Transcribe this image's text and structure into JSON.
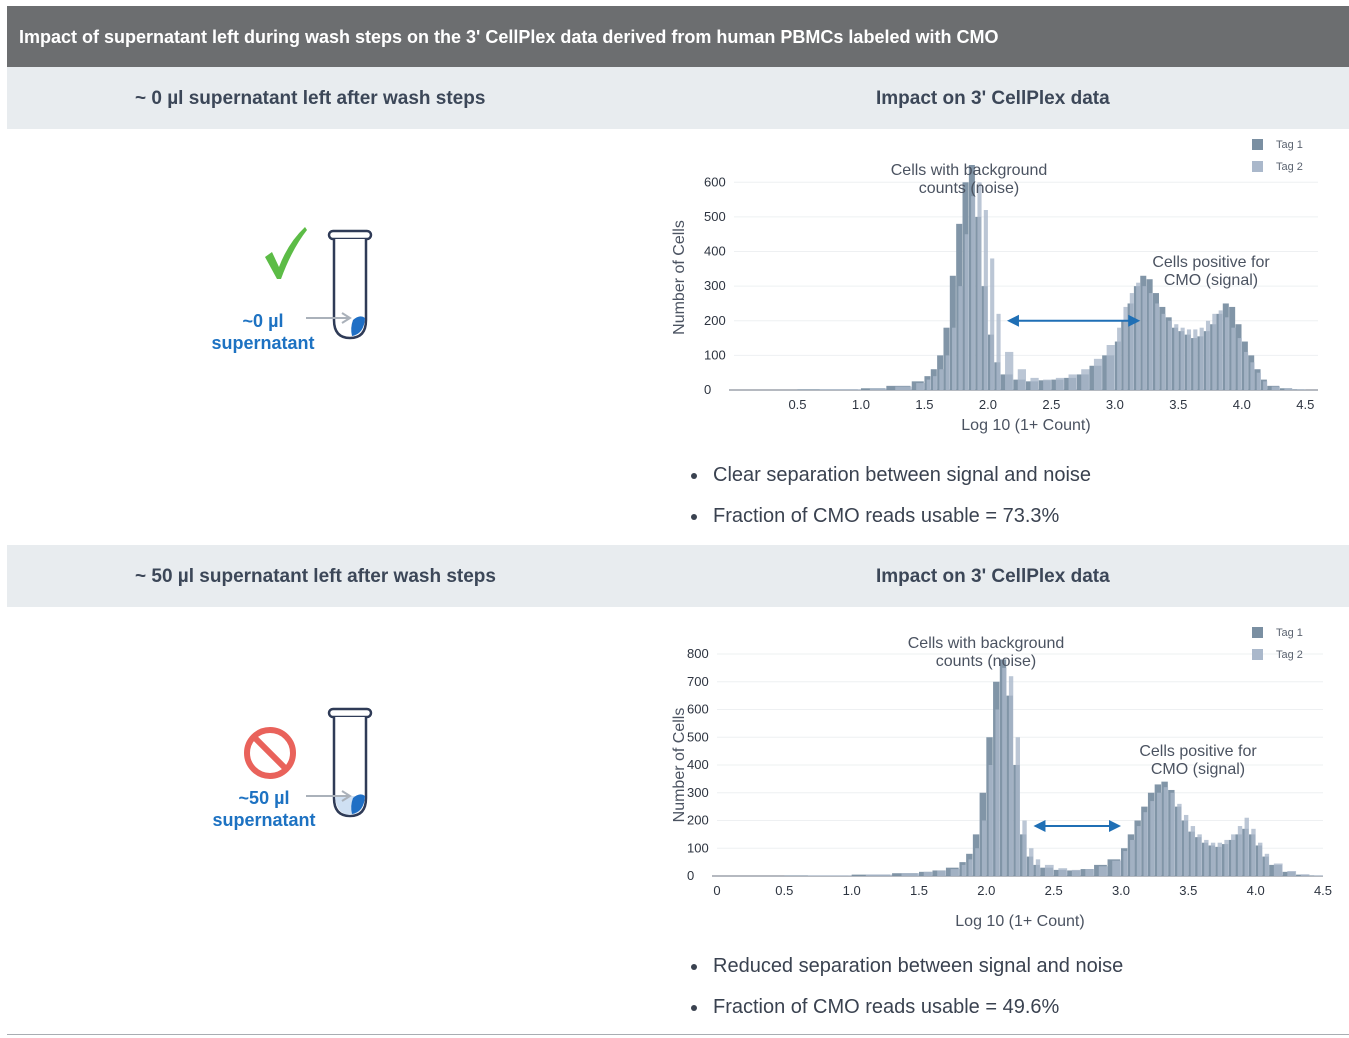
{
  "title": "Impact of supernatant left during wash steps on the 3' CellPlex data derived from human PBMCs labeled with CMO",
  "colors": {
    "tag1": "#7a8fa2",
    "tag2": "#aab8cb",
    "arrow": "#1f6fb5",
    "check": "#5cbc46",
    "prohibit": "#e9625b",
    "label": "#1d72c2"
  },
  "sections": [
    {
      "left_header": "~ 0 µl supernatant left after wash steps",
      "right_header": "Impact on 3' CellPlex data",
      "status_icon": "checkmark-icon",
      "tube_icon": "tube-icon",
      "label_line1": "~0 µl",
      "label_line2": "supernatant",
      "bullets": [
        "Clear separation between signal and noise",
        "Fraction of CMO reads usable = 73.3%"
      ]
    },
    {
      "left_header": "~ 50 µl supernatant left after wash steps",
      "right_header": "Impact on 3' CellPlex data",
      "status_icon": "prohibited-icon",
      "tube_icon": "tube-icon",
      "label_line1": "~50 µl",
      "label_line2": "supernatant",
      "bullets": [
        "Reduced separation between signal and noise",
        "Fraction of CMO reads usable = 49.6%"
      ]
    }
  ],
  "chart_data": [
    {
      "type": "histogram",
      "xlabel": "Log 10 (1+ Count)",
      "ylabel": "Number of Cells",
      "xlim": [
        0,
        4.6
      ],
      "ylim": [
        0,
        650
      ],
      "xticks": [
        "0.5",
        "1.0",
        "1.5",
        "2.0",
        "2.5",
        "3.0",
        "3.5",
        "4.0",
        "4.5"
      ],
      "yticks": [
        "0",
        "100",
        "200",
        "300",
        "400",
        "500",
        "600"
      ],
      "grid": true,
      "legend": "top-right",
      "legend_labels": [
        "Tag 1",
        "Tag 2"
      ],
      "annotations": {
        "noise": [
          "Cells with background",
          "counts (noise)"
        ],
        "signal": [
          "Cells positive for",
          "CMO (signal)"
        ]
      },
      "arrow_x": [
        2.15,
        3.2
      ],
      "arrow_y": 200,
      "series": [
        {
          "name": "Tag 1",
          "x": [
            0.0,
            0.5,
            1.0,
            1.2,
            1.4,
            1.5,
            1.55,
            1.6,
            1.65,
            1.7,
            1.75,
            1.8,
            1.85,
            1.9,
            1.95,
            2.0,
            2.05,
            2.1,
            2.2,
            2.3,
            2.4,
            2.5,
            2.6,
            2.7,
            2.8,
            2.9,
            3.0,
            3.05,
            3.1,
            3.15,
            3.2,
            3.25,
            3.3,
            3.35,
            3.4,
            3.45,
            3.5,
            3.55,
            3.6,
            3.65,
            3.7,
            3.75,
            3.8,
            3.85,
            3.9,
            3.95,
            4.0,
            4.05,
            4.1,
            4.15,
            4.2,
            4.3,
            4.4,
            4.5
          ],
          "y": [
            0,
            2,
            5,
            12,
            25,
            40,
            60,
            100,
            180,
            330,
            480,
            600,
            650,
            500,
            300,
            160,
            80,
            45,
            30,
            25,
            28,
            30,
            35,
            45,
            70,
            100,
            140,
            200,
            250,
            300,
            330,
            320,
            280,
            240,
            210,
            180,
            170,
            160,
            150,
            155,
            170,
            190,
            220,
            250,
            240,
            190,
            140,
            100,
            60,
            30,
            12,
            5,
            2,
            0
          ]
        },
        {
          "name": "Tag 2",
          "x": [
            0.0,
            0.5,
            1.0,
            1.2,
            1.4,
            1.5,
            1.55,
            1.6,
            1.65,
            1.7,
            1.75,
            1.8,
            1.85,
            1.9,
            1.95,
            2.0,
            2.05,
            2.1,
            2.2,
            2.3,
            2.4,
            2.5,
            2.6,
            2.7,
            2.8,
            2.9,
            3.0,
            3.05,
            3.1,
            3.15,
            3.2,
            3.25,
            3.3,
            3.35,
            3.4,
            3.45,
            3.5,
            3.55,
            3.6,
            3.65,
            3.7,
            3.75,
            3.8,
            3.85,
            3.9,
            3.95,
            4.0,
            4.05,
            4.1,
            4.15,
            4.2,
            4.3,
            4.4,
            4.5
          ],
          "y": [
            0,
            2,
            5,
            10,
            20,
            30,
            40,
            60,
            100,
            180,
            300,
            450,
            560,
            600,
            520,
            380,
            220,
            110,
            60,
            35,
            30,
            35,
            45,
            60,
            90,
            130,
            180,
            240,
            280,
            310,
            300,
            280,
            250,
            220,
            200,
            190,
            180,
            175,
            175,
            180,
            200,
            220,
            230,
            210,
            180,
            150,
            110,
            80,
            50,
            25,
            10,
            4,
            1,
            0
          ]
        }
      ]
    },
    {
      "type": "histogram",
      "xlabel": "Log 10 (1+ Count)",
      "ylabel": "Number of Cells",
      "xlim": [
        0,
        4.5
      ],
      "ylim": [
        0,
        800
      ],
      "xticks": [
        "0",
        "0.5",
        "1.0",
        "1.5",
        "2.0",
        "2.5",
        "3.0",
        "3.5",
        "4.0",
        "4.5"
      ],
      "yticks": [
        "0",
        "100",
        "200",
        "300",
        "400",
        "500",
        "600",
        "700",
        "800"
      ],
      "grid": true,
      "legend": "top-right",
      "legend_labels": [
        "Tag 1",
        "Tag 2"
      ],
      "annotations": {
        "noise": [
          "Cells with background",
          "counts (noise)"
        ],
        "signal": [
          "Cells positive for",
          "CMO (signal)"
        ]
      },
      "arrow_x": [
        2.35,
        3.0
      ],
      "arrow_y": 180,
      "series": [
        {
          "name": "Tag 1",
          "x": [
            0.0,
            0.5,
            1.0,
            1.3,
            1.5,
            1.6,
            1.7,
            1.8,
            1.85,
            1.9,
            1.95,
            2.0,
            2.05,
            2.1,
            2.15,
            2.2,
            2.25,
            2.3,
            2.35,
            2.4,
            2.5,
            2.6,
            2.7,
            2.8,
            2.9,
            3.0,
            3.05,
            3.1,
            3.15,
            3.2,
            3.25,
            3.3,
            3.35,
            3.4,
            3.45,
            3.5,
            3.55,
            3.6,
            3.65,
            3.7,
            3.75,
            3.8,
            3.85,
            3.9,
            3.95,
            4.0,
            4.05,
            4.1,
            4.2,
            4.3,
            4.4,
            4.5
          ],
          "y": [
            0,
            2,
            5,
            10,
            15,
            20,
            30,
            50,
            80,
            150,
            300,
            500,
            700,
            780,
            650,
            400,
            150,
            70,
            40,
            30,
            22,
            20,
            25,
            40,
            60,
            100,
            150,
            200,
            250,
            300,
            330,
            340,
            310,
            250,
            200,
            160,
            140,
            120,
            110,
            105,
            115,
            130,
            150,
            170,
            150,
            110,
            70,
            40,
            15,
            5,
            2,
            0
          ]
        },
        {
          "name": "Tag 2",
          "x": [
            0.0,
            0.5,
            1.0,
            1.3,
            1.5,
            1.6,
            1.7,
            1.8,
            1.85,
            1.9,
            1.95,
            2.0,
            2.05,
            2.1,
            2.15,
            2.2,
            2.25,
            2.3,
            2.35,
            2.4,
            2.5,
            2.6,
            2.7,
            2.8,
            2.9,
            3.0,
            3.05,
            3.1,
            3.15,
            3.2,
            3.25,
            3.3,
            3.35,
            3.4,
            3.45,
            3.5,
            3.55,
            3.6,
            3.65,
            3.7,
            3.75,
            3.8,
            3.85,
            3.9,
            3.95,
            4.0,
            4.05,
            4.1,
            4.2,
            4.3,
            4.4,
            4.5
          ],
          "y": [
            0,
            2,
            5,
            10,
            15,
            20,
            25,
            40,
            60,
            100,
            200,
            400,
            600,
            750,
            720,
            500,
            200,
            100,
            60,
            40,
            28,
            22,
            25,
            35,
            55,
            90,
            130,
            180,
            230,
            270,
            300,
            320,
            300,
            260,
            220,
            180,
            150,
            130,
            120,
            120,
            130,
            150,
            180,
            210,
            170,
            120,
            80,
            45,
            18,
            6,
            2,
            0
          ]
        }
      ]
    }
  ]
}
